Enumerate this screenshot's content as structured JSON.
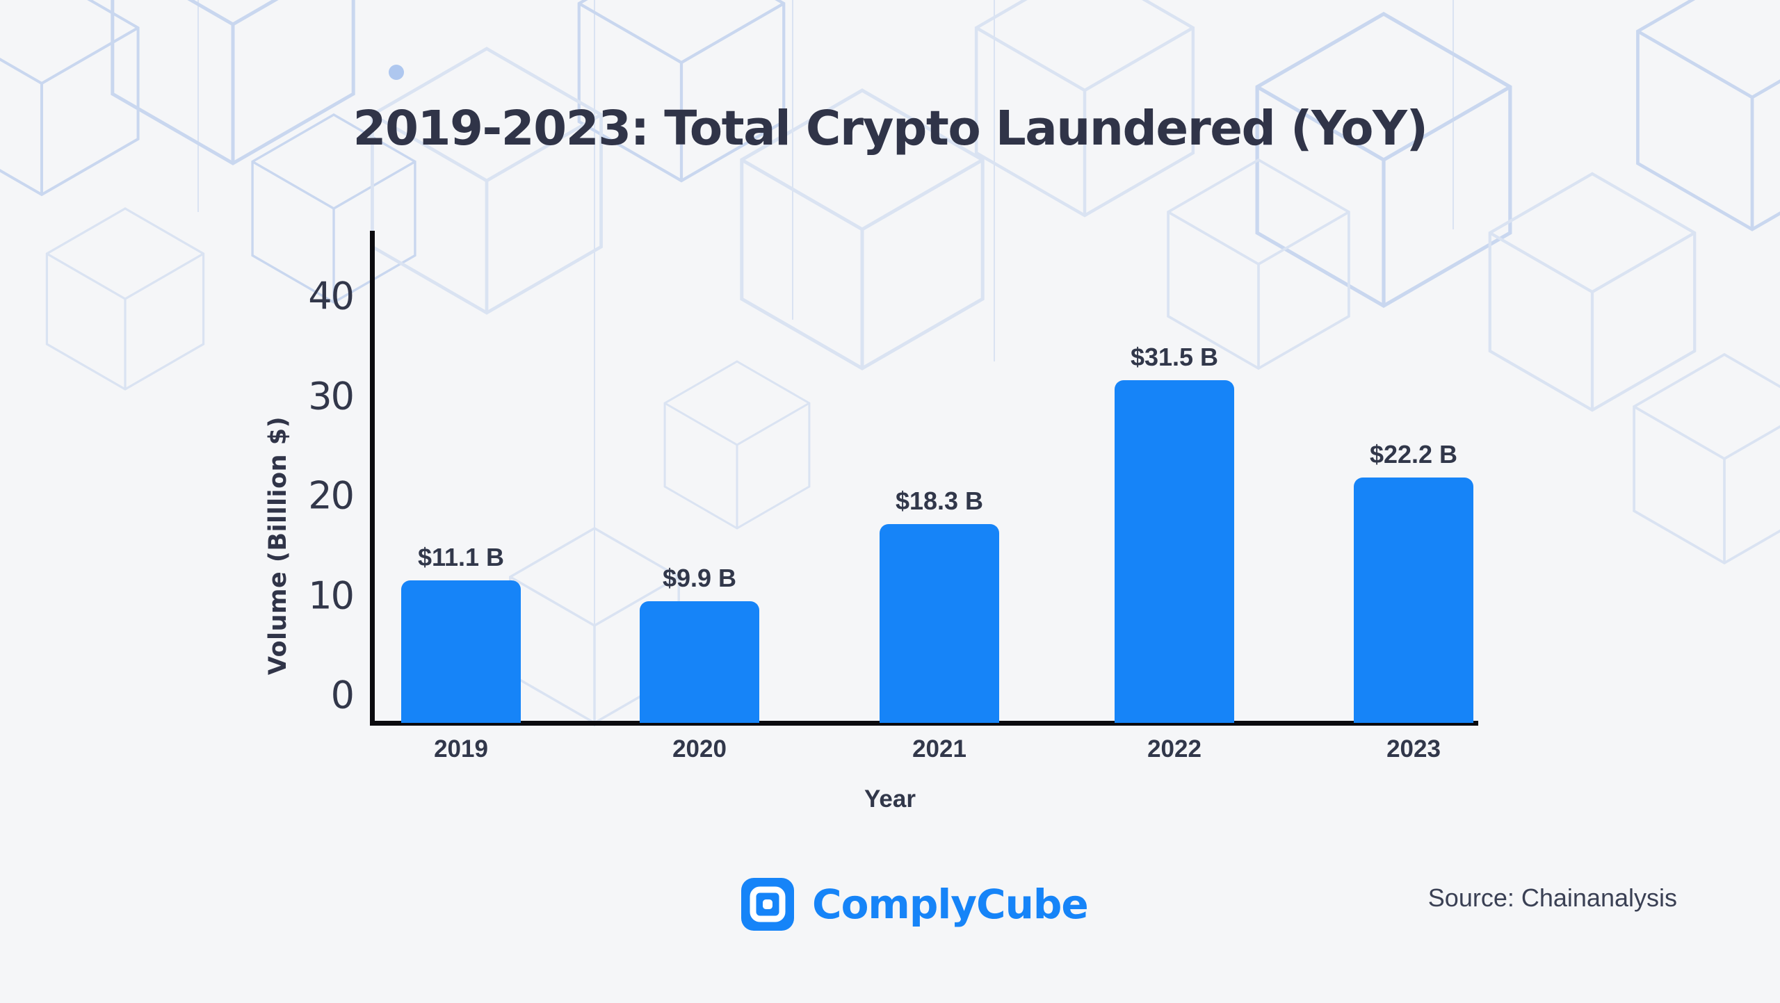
{
  "title": "2019-2023: Total Crypto Laundered (YoY)",
  "chart_data": {
    "type": "bar",
    "title": "2019-2023: Total Crypto Laundered (YoY)",
    "categories": [
      "2019",
      "2020",
      "2021",
      "2022",
      "2023"
    ],
    "values": [
      11.1,
      9.9,
      18.3,
      31.5,
      22.2
    ],
    "bar_labels": [
      "$11.1 B",
      "$9.9 B",
      "$18.3 B",
      "$31.5 B",
      "$22.2 B"
    ],
    "xlabel": "Year",
    "ylabel": "Volume (Billlion $)",
    "ylim": [
      0,
      40
    ],
    "yticks": [
      "40",
      "30",
      "20",
      "10",
      "0"
    ],
    "grid": false,
    "legend": "none",
    "bar_color": "#1684f8"
  },
  "footer": {
    "brand": "ComplyCube",
    "source": "Source: Chainanalysis"
  },
  "colors": {
    "background": "#f5f6f8",
    "bar_blue": "#1684f8",
    "brand_blue": "#1684f8",
    "text_dark": "#303448",
    "axis_black": "#0b0b0f",
    "pattern_line": "#dae3f2",
    "pattern_line_strong": "#c9d7ef",
    "pattern_dot": "#aec7ef"
  }
}
